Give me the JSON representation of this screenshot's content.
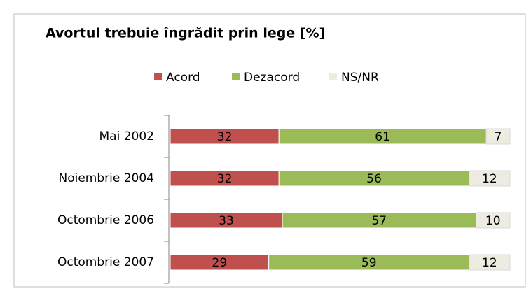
{
  "chart_data": {
    "type": "stacked-barh",
    "title": "Avortul trebuie îngrădit prin lege [%]",
    "categories": [
      "Mai 2002",
      "Noiembrie 2004",
      "Octombrie 2006",
      "Octombrie 2007"
    ],
    "series": [
      {
        "name": "Acord",
        "color": "#c0504d",
        "values": [
          32,
          32,
          33,
          29
        ]
      },
      {
        "name": "Dezacord",
        "color": "#9bbb59",
        "values": [
          61,
          56,
          57,
          59
        ]
      },
      {
        "name": "NS/NR",
        "color": "#eeece1",
        "values": [
          7,
          12,
          10,
          12
        ]
      }
    ],
    "xlim": [
      0,
      100
    ]
  }
}
